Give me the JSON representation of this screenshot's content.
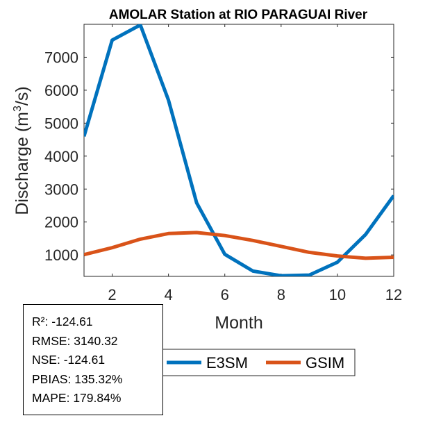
{
  "chart_data": {
    "type": "line",
    "title": "AMOLAR  Station at  RIO PARAGUAI  River",
    "xlabel": "Month",
    "ylabel": "Discharge (m³/s)",
    "ylabel_base": "Discharge (m",
    "ylabel_sup": "3",
    "ylabel_tail": "/s)",
    "x": [
      1,
      2,
      3,
      4,
      5,
      6,
      7,
      8,
      9,
      10,
      11,
      12
    ],
    "xlim": [
      1,
      12
    ],
    "ylim": [
      350,
      8000
    ],
    "xticks": [
      2,
      4,
      6,
      8,
      10,
      12
    ],
    "yticks": [
      1000,
      2000,
      3000,
      4000,
      5000,
      6000,
      7000
    ],
    "grid": false,
    "legend_position": "bottom-outside",
    "series": [
      {
        "name": "E3SM",
        "color": "#0072BD",
        "values": [
          4600,
          7520,
          7980,
          5700,
          2580,
          1020,
          510,
          370,
          390,
          780,
          1620,
          2800
        ]
      },
      {
        "name": "GSIM",
        "color": "#D95319",
        "values": [
          1010,
          1220,
          1480,
          1650,
          1680,
          1590,
          1440,
          1260,
          1080,
          970,
          900,
          930
        ]
      }
    ]
  },
  "stats": {
    "r2": "R²: -124.61",
    "rmse": "RMSE: 3140.32",
    "nse": "NSE: -124.61",
    "pbias": "PBIAS: 135.32%",
    "mape": "MAPE: 179.84%"
  }
}
